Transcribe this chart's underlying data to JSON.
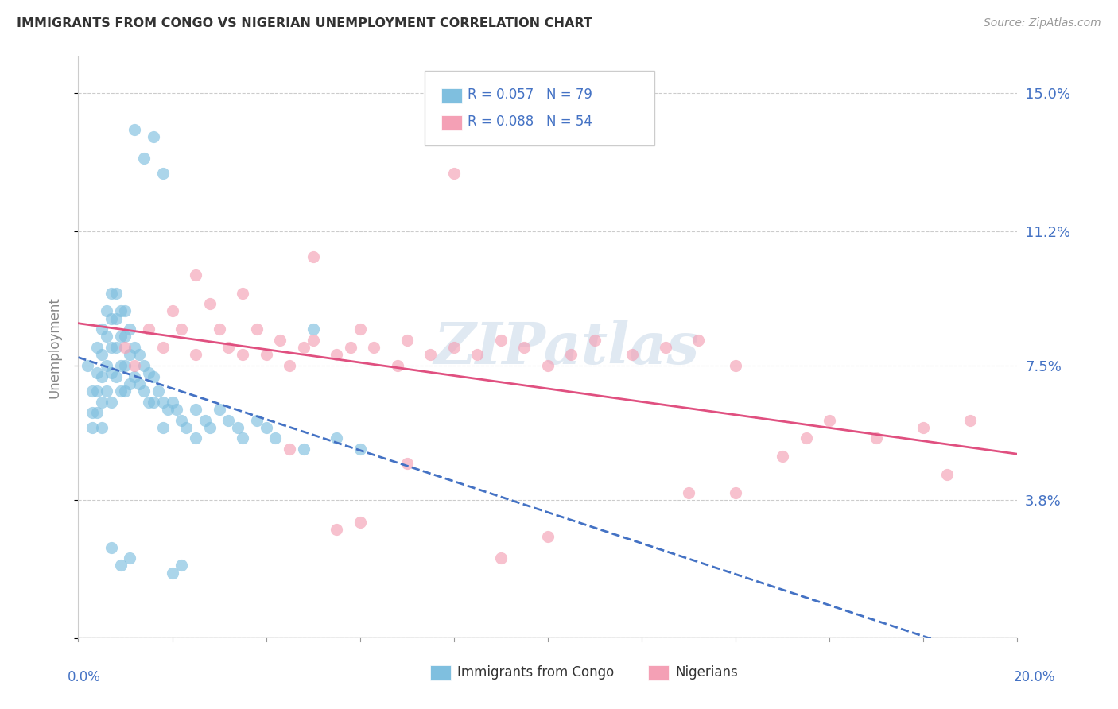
{
  "title": "IMMIGRANTS FROM CONGO VS NIGERIAN UNEMPLOYMENT CORRELATION CHART",
  "source": "Source: ZipAtlas.com",
  "ylabel": "Unemployment",
  "yticks": [
    0.0,
    0.038,
    0.075,
    0.112,
    0.15
  ],
  "ytick_labels": [
    "",
    "3.8%",
    "7.5%",
    "11.2%",
    "15.0%"
  ],
  "xlim": [
    0.0,
    0.2
  ],
  "ylim": [
    0.0,
    0.16
  ],
  "congo_R": 0.057,
  "congo_N": 79,
  "nigerian_R": 0.088,
  "nigerian_N": 54,
  "congo_color": "#7fbfdf",
  "nigerian_color": "#f4a0b5",
  "background_color": "#ffffff",
  "grid_color": "#cccccc",
  "title_color": "#333333",
  "axis_label_color": "#4472c4",
  "watermark_text": "ZIPatlas",
  "congo_x": [
    0.002,
    0.003,
    0.003,
    0.003,
    0.004,
    0.004,
    0.004,
    0.004,
    0.005,
    0.005,
    0.005,
    0.005,
    0.005,
    0.006,
    0.006,
    0.006,
    0.006,
    0.007,
    0.007,
    0.007,
    0.007,
    0.007,
    0.008,
    0.008,
    0.008,
    0.008,
    0.009,
    0.009,
    0.009,
    0.009,
    0.01,
    0.01,
    0.01,
    0.01,
    0.011,
    0.011,
    0.011,
    0.012,
    0.012,
    0.013,
    0.013,
    0.014,
    0.014,
    0.015,
    0.015,
    0.016,
    0.016,
    0.017,
    0.018,
    0.018,
    0.019,
    0.02,
    0.021,
    0.022,
    0.023,
    0.025,
    0.025,
    0.027,
    0.028,
    0.03,
    0.032,
    0.034,
    0.035,
    0.038,
    0.04,
    0.042,
    0.048,
    0.055,
    0.06,
    0.012,
    0.014,
    0.016,
    0.018,
    0.02,
    0.022,
    0.009,
    0.011,
    0.007,
    0.05
  ],
  "congo_y": [
    0.075,
    0.068,
    0.062,
    0.058,
    0.08,
    0.073,
    0.068,
    0.062,
    0.085,
    0.078,
    0.072,
    0.065,
    0.058,
    0.09,
    0.083,
    0.075,
    0.068,
    0.095,
    0.088,
    0.08,
    0.073,
    0.065,
    0.095,
    0.088,
    0.08,
    0.072,
    0.09,
    0.083,
    0.075,
    0.068,
    0.09,
    0.083,
    0.075,
    0.068,
    0.085,
    0.078,
    0.07,
    0.08,
    0.072,
    0.078,
    0.07,
    0.075,
    0.068,
    0.073,
    0.065,
    0.072,
    0.065,
    0.068,
    0.065,
    0.058,
    0.063,
    0.065,
    0.063,
    0.06,
    0.058,
    0.063,
    0.055,
    0.06,
    0.058,
    0.063,
    0.06,
    0.058,
    0.055,
    0.06,
    0.058,
    0.055,
    0.052,
    0.055,
    0.052,
    0.14,
    0.132,
    0.138,
    0.128,
    0.018,
    0.02,
    0.02,
    0.022,
    0.025,
    0.085
  ],
  "nigerian_x": [
    0.01,
    0.012,
    0.015,
    0.018,
    0.02,
    0.022,
    0.025,
    0.028,
    0.03,
    0.032,
    0.035,
    0.038,
    0.04,
    0.043,
    0.045,
    0.048,
    0.05,
    0.055,
    0.058,
    0.06,
    0.063,
    0.068,
    0.07,
    0.075,
    0.08,
    0.085,
    0.09,
    0.095,
    0.1,
    0.105,
    0.11,
    0.118,
    0.125,
    0.132,
    0.14,
    0.15,
    0.155,
    0.16,
    0.17,
    0.18,
    0.19,
    0.185,
    0.13,
    0.08,
    0.055,
    0.1,
    0.06,
    0.035,
    0.025,
    0.045,
    0.05,
    0.14,
    0.09,
    0.07
  ],
  "nigerian_y": [
    0.08,
    0.075,
    0.085,
    0.08,
    0.09,
    0.085,
    0.078,
    0.092,
    0.085,
    0.08,
    0.078,
    0.085,
    0.078,
    0.082,
    0.075,
    0.08,
    0.082,
    0.078,
    0.08,
    0.085,
    0.08,
    0.075,
    0.082,
    0.078,
    0.08,
    0.078,
    0.082,
    0.08,
    0.075,
    0.078,
    0.082,
    0.078,
    0.08,
    0.082,
    0.075,
    0.05,
    0.055,
    0.06,
    0.055,
    0.058,
    0.06,
    0.045,
    0.04,
    0.128,
    0.03,
    0.028,
    0.032,
    0.095,
    0.1,
    0.052,
    0.105,
    0.04,
    0.022,
    0.048
  ]
}
